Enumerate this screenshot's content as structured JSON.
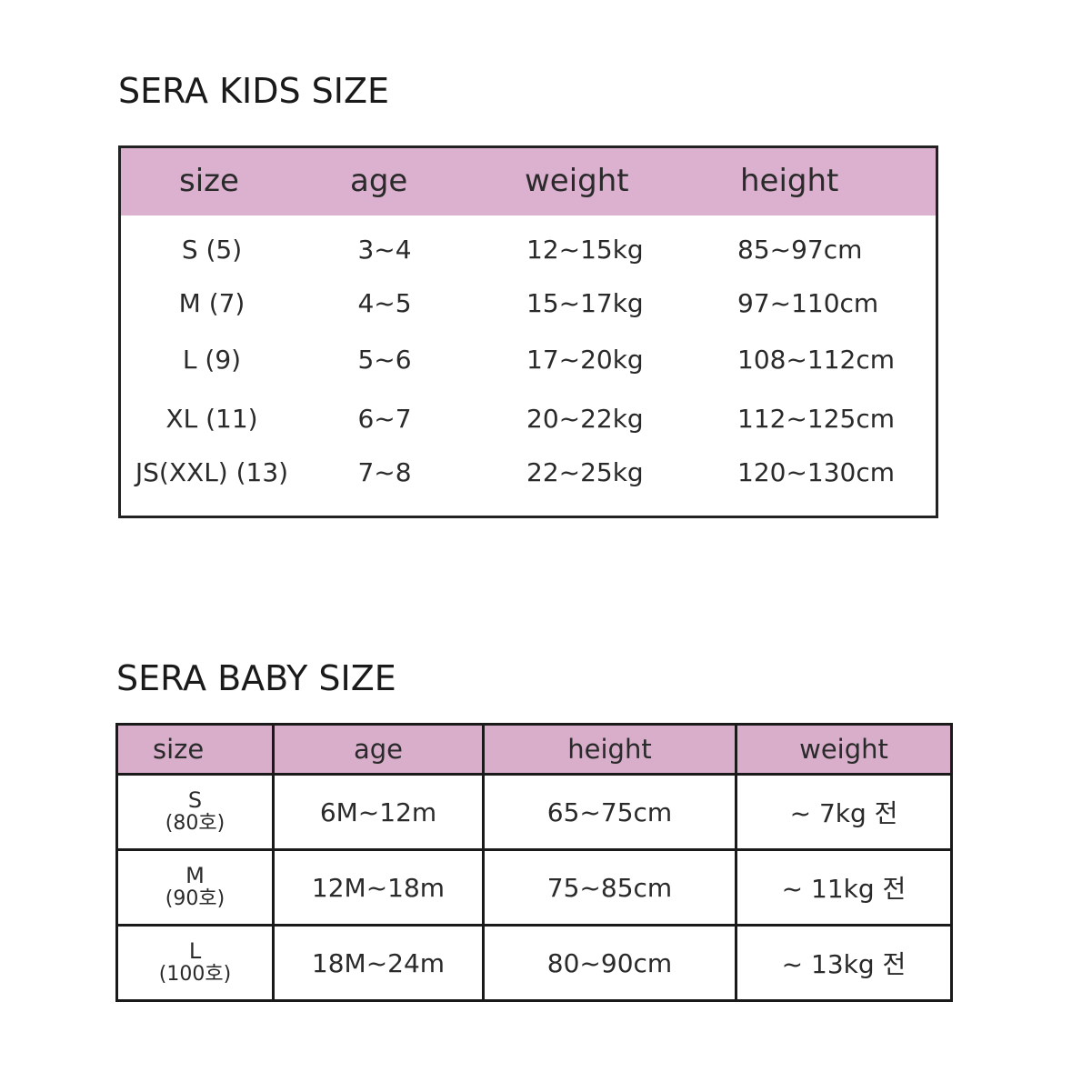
{
  "kids": {
    "title": "SERA  KIDS  SIZE",
    "headers": [
      "size",
      "age",
      "weight",
      "height"
    ],
    "rows": [
      [
        "S (5)",
        "3~4",
        "12~15kg",
        "85~97cm"
      ],
      [
        "M (7)",
        "4~5",
        "15~17kg",
        "97~110cm"
      ],
      [
        "L (9)",
        "5~6",
        "17~20kg",
        "108~112cm"
      ],
      [
        "XL (11)",
        "6~7",
        "20~22kg",
        "112~125cm"
      ],
      [
        "JS(XXL) (13)",
        "7~8",
        "22~25kg",
        "120~130cm"
      ]
    ]
  },
  "baby": {
    "title": "SERA BABY SIZE",
    "headers": [
      "size",
      "age",
      "height",
      "weight"
    ],
    "rows": [
      {
        "size": "S",
        "code": "(80호)",
        "age": "6M~12m",
        "height": "65~75cm",
        "weight": "~ 7kg 전"
      },
      {
        "size": "M",
        "code": "(90호)",
        "age": "12M~18m",
        "height": "75~85cm",
        "weight": "~ 11kg 전"
      },
      {
        "size": "L",
        "code": "(100호)",
        "age": "18M~24m",
        "height": "80~90cm",
        "weight": "~ 13kg 전"
      }
    ]
  },
  "colors": {
    "header": "#dbb1cf",
    "border": "#222222"
  }
}
